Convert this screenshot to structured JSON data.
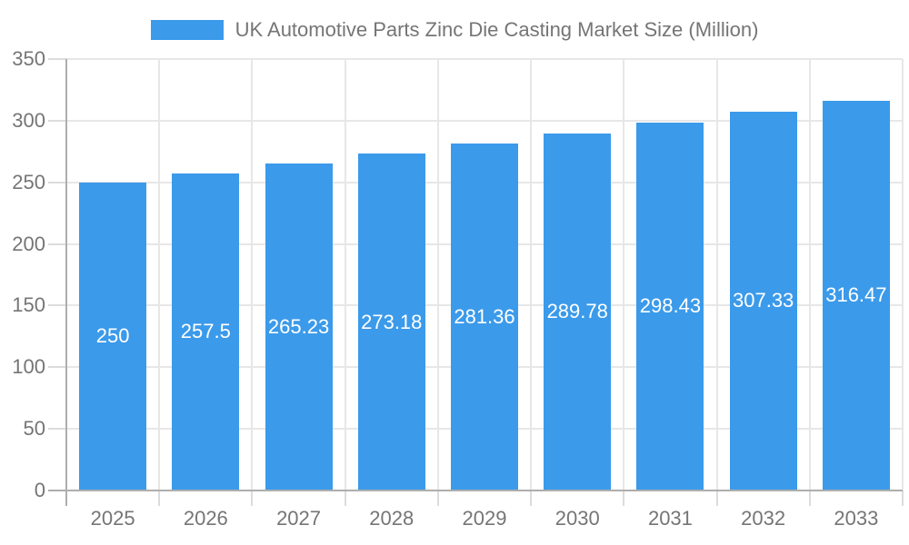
{
  "chart": {
    "legend_label": "UK Automotive Parts Zinc Die Casting Market Size (Million)"
  },
  "chart_data": {
    "type": "bar",
    "title": "UK Automotive Parts Zinc Die Casting Market Size (Million)",
    "categories": [
      "2025",
      "2026",
      "2027",
      "2028",
      "2029",
      "2030",
      "2031",
      "2032",
      "2033"
    ],
    "values": [
      250,
      257.5,
      265.23,
      273.18,
      281.36,
      289.78,
      298.43,
      307.33,
      316.47
    ],
    "value_labels": [
      "250",
      "257.5",
      "265.23",
      "273.18",
      "281.36",
      "289.78",
      "298.43",
      "307.33",
      "316.47"
    ],
    "xlabel": "",
    "ylabel": "",
    "ylim": [
      0,
      350
    ],
    "y_ticks": [
      0,
      50,
      100,
      150,
      200,
      250,
      300,
      350
    ],
    "y_tick_labels": [
      "0",
      "50",
      "100",
      "150",
      "200",
      "250",
      "300",
      "350"
    ],
    "grid": "horizontal and vertical light gridlines",
    "legend_position": "top-center",
    "bar_color": "#3B9AEA",
    "bar_label_color": "#FFFFFF",
    "axis_text_color": "#757575"
  }
}
